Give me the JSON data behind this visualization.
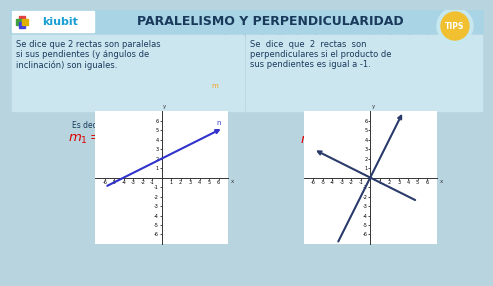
{
  "title": "PARALELISMO Y PERPENDICULARIDAD",
  "bg_color": "#b8d4df",
  "header_bg": "#9ecfdf",
  "left_text_line1": "Se dice que 2 rectas son paralelas",
  "left_text_line2": "si sus pendientes (y ángulos de",
  "left_text_line3": "inclinación) son iguales.",
  "right_text_line1": "Se  dice  que  2  rectas  son",
  "right_text_line2": "perpendiculares si el producto de",
  "right_text_line3": "sus pendientes es igual a -1.",
  "es_decir": "Es decir:",
  "left_formula": "$m_1 = m_2$",
  "right_formula": "$m_1 \\times m_2 = -1$",
  "formula_color": "#dd0000",
  "panel_bg": "#cce8f0",
  "header_text_color": "#1a3a5c",
  "body_text_color": "#1a3a5c",
  "orange_line_color": "#f5a020",
  "blue_line_color": "#3030cc",
  "perp_line_color": "#2a3a6a",
  "axis_color": "#333333"
}
